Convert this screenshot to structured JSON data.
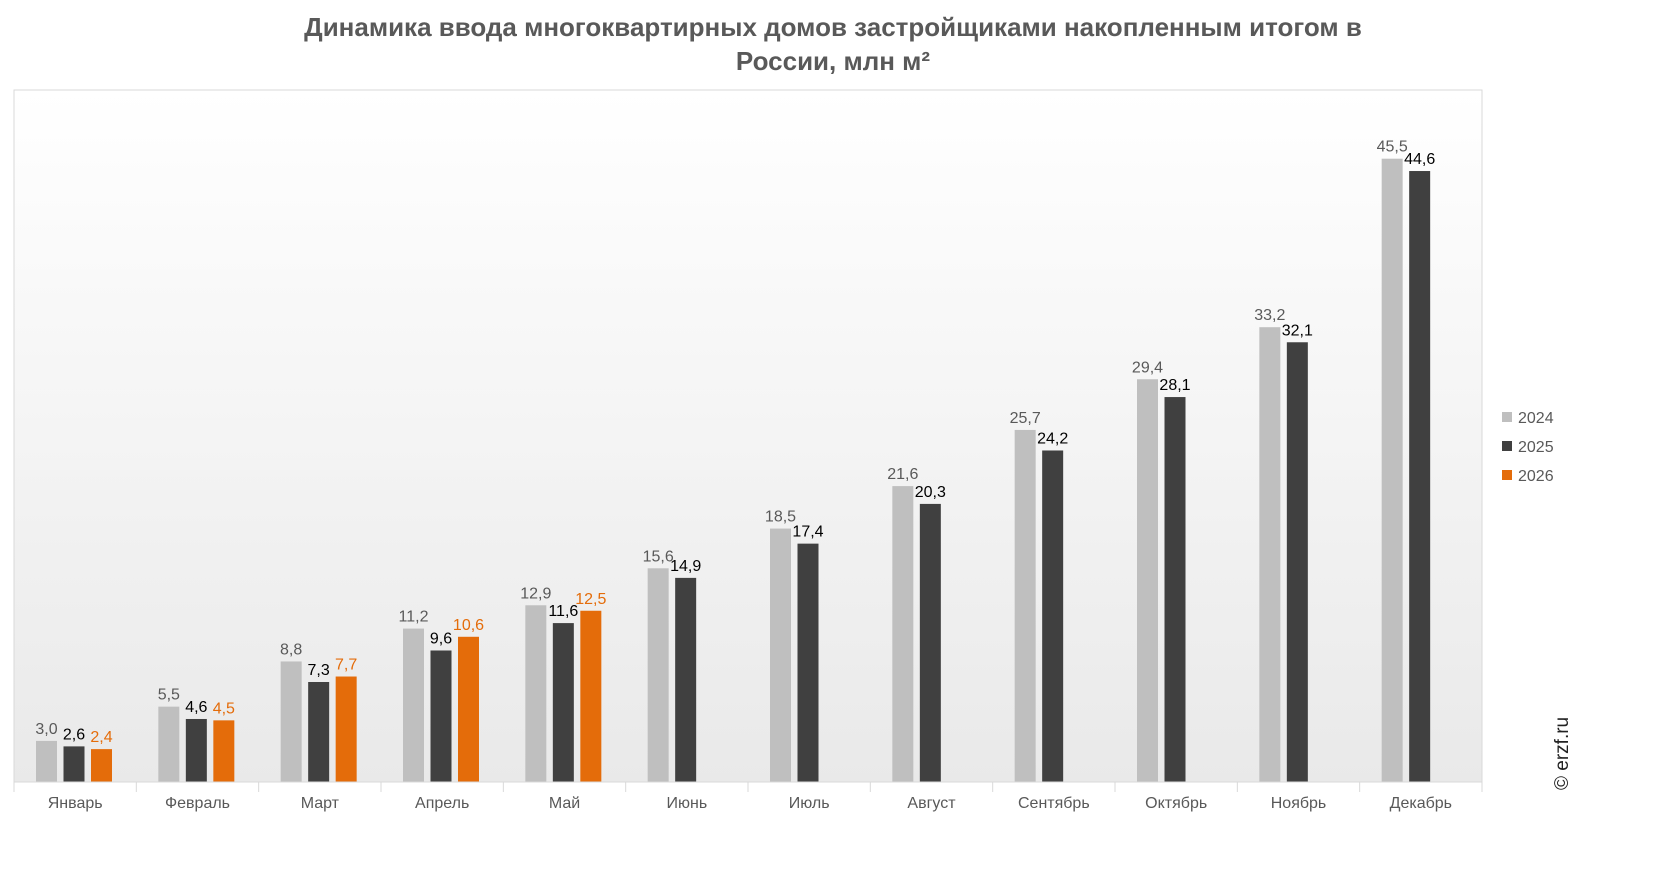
{
  "title": {
    "line1": "Динамика ввода многоквартирных домов застройщиками накопленным итогом в",
    "line2": "России, млн м²"
  },
  "watermark": "© erzf.ru",
  "chart_data": {
    "type": "bar",
    "title": "Динамика ввода многоквартирных домов застройщиками накопленным итогом в России, млн м²",
    "categories": [
      "Январь",
      "Февраль",
      "Март",
      "Апрель",
      "Май",
      "Июнь",
      "Июль",
      "Август",
      "Сентябрь",
      "Октябрь",
      "Ноябрь",
      "Декабрь"
    ],
    "series": [
      {
        "name": "2024",
        "color": "#BFBFBF",
        "label_color": "#595959",
        "values": [
          3.0,
          5.5,
          8.8,
          11.2,
          12.9,
          15.6,
          18.5,
          21.6,
          25.7,
          29.4,
          33.2,
          45.5
        ],
        "labels": [
          "3,0",
          "5,5",
          "8,8",
          "11,2",
          "12,9",
          "15,6",
          "18,5",
          "21,6",
          "25,7",
          "29,4",
          "33,2",
          "45,5"
        ]
      },
      {
        "name": "2025",
        "color": "#404040",
        "label_color": "#000000",
        "values": [
          2.6,
          4.6,
          7.3,
          9.6,
          11.6,
          14.9,
          17.4,
          20.3,
          24.2,
          28.1,
          32.1,
          44.6
        ],
        "labels": [
          "2,6",
          "4,6",
          "7,3",
          "9,6",
          "11,6",
          "14,9",
          "17,4",
          "20,3",
          "24,2",
          "28,1",
          "32,1",
          "44,6"
        ]
      },
      {
        "name": "2026",
        "color": "#E46C0A",
        "label_color": "#E46C0A",
        "values": [
          2.4,
          4.5,
          7.7,
          10.6,
          12.5,
          null,
          null,
          null,
          null,
          null,
          null,
          null
        ],
        "labels": [
          "2,4",
          "4,5",
          "7,7",
          "10,6",
          "12,5",
          null,
          null,
          null,
          null,
          null,
          null,
          null
        ]
      }
    ],
    "ylim": [
      0,
      50
    ],
    "grid": false,
    "legend": "right"
  }
}
